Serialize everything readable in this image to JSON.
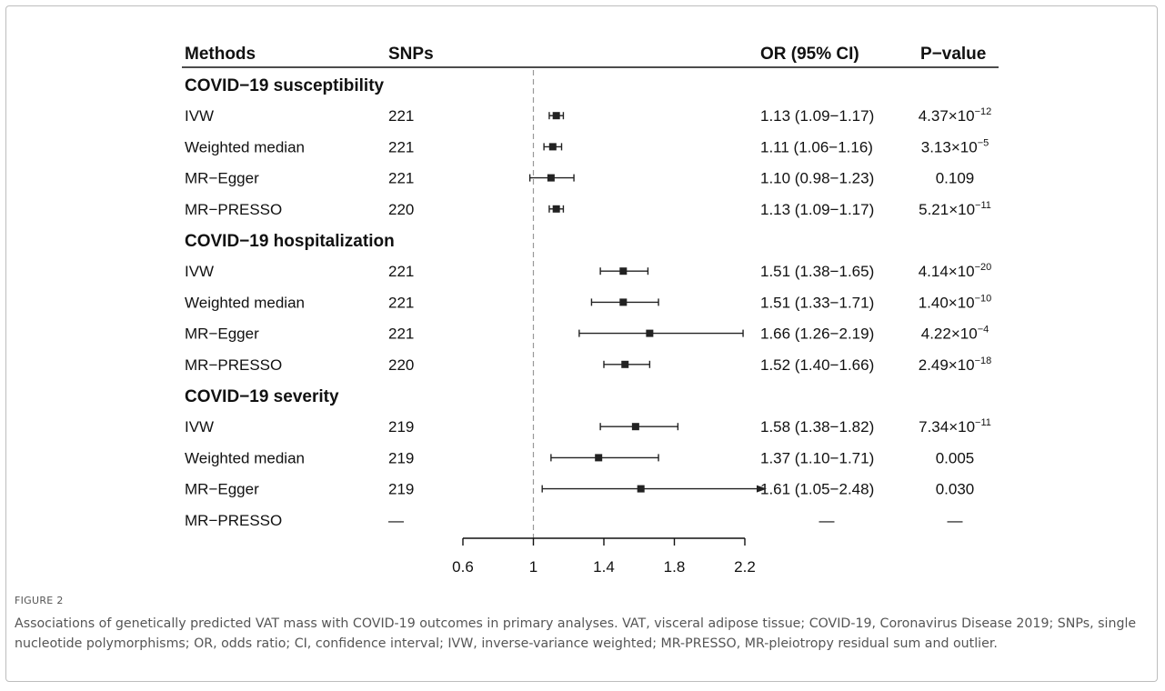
{
  "figure": {
    "label": "FIGURE 2",
    "caption": "Associations of genetically predicted VAT mass with COVID-19 outcomes in primary analyses. VAT, visceral adipose tissue; COVID-19, Coronavirus Disease 2019; SNPs, single nucleotide polymorphisms; OR, odds ratio; CI, confidence interval; IVW, inverse-variance weighted; MR-PRESSO, MR-pleiotropy residual sum and outlier."
  },
  "headers": {
    "methods": "Methods",
    "snps": "SNPs",
    "or": "OR (95% CI)",
    "pvalue": "P−value"
  },
  "chart_data": {
    "type": "forest",
    "null_value": 1,
    "xlim": [
      0.6,
      2.2
    ],
    "xticks": [
      "0.6",
      "1",
      "1.4",
      "1.8",
      "2.2"
    ],
    "groups": [
      {
        "title": "COVID−19 susceptibility",
        "rows": [
          {
            "method": "IVW",
            "snps": "221",
            "or": 1.13,
            "lo": 1.09,
            "hi": 1.17,
            "or_text": "1.13 (1.09−1.17)",
            "p_mant": "4.37×10",
            "p_exp": "−12"
          },
          {
            "method": "Weighted median",
            "snps": "221",
            "or": 1.11,
            "lo": 1.06,
            "hi": 1.16,
            "or_text": "1.11 (1.06−1.16)",
            "p_mant": "3.13×10",
            "p_exp": "−5"
          },
          {
            "method": "MR−Egger",
            "snps": "221",
            "or": 1.1,
            "lo": 0.98,
            "hi": 1.23,
            "or_text": "1.10 (0.98−1.23)",
            "p_mant": "0.109",
            "p_exp": ""
          },
          {
            "method": "MR−PRESSO",
            "snps": "220",
            "or": 1.13,
            "lo": 1.09,
            "hi": 1.17,
            "or_text": "1.13 (1.09−1.17)",
            "p_mant": "5.21×10",
            "p_exp": "−11"
          }
        ]
      },
      {
        "title": "COVID−19 hospitalization",
        "rows": [
          {
            "method": "IVW",
            "snps": "221",
            "or": 1.51,
            "lo": 1.38,
            "hi": 1.65,
            "or_text": "1.51 (1.38−1.65)",
            "p_mant": "4.14×10",
            "p_exp": "−20"
          },
          {
            "method": "Weighted median",
            "snps": "221",
            "or": 1.51,
            "lo": 1.33,
            "hi": 1.71,
            "or_text": "1.51 (1.33−1.71)",
            "p_mant": "1.40×10",
            "p_exp": "−10"
          },
          {
            "method": "MR−Egger",
            "snps": "221",
            "or": 1.66,
            "lo": 1.26,
            "hi": 2.19,
            "or_text": "1.66 (1.26−2.19)",
            "p_mant": "4.22×10",
            "p_exp": "−4"
          },
          {
            "method": "MR−PRESSO",
            "snps": "220",
            "or": 1.52,
            "lo": 1.4,
            "hi": 1.66,
            "or_text": "1.52 (1.40−1.66)",
            "p_mant": "2.49×10",
            "p_exp": "−18"
          }
        ]
      },
      {
        "title": "COVID−19 severity",
        "rows": [
          {
            "method": "IVW",
            "snps": "219",
            "or": 1.58,
            "lo": 1.38,
            "hi": 1.82,
            "or_text": "1.58 (1.38−1.82)",
            "p_mant": "7.34×10",
            "p_exp": "−11"
          },
          {
            "method": "Weighted median",
            "snps": "219",
            "or": 1.37,
            "lo": 1.1,
            "hi": 1.71,
            "or_text": "1.37 (1.10−1.71)",
            "p_mant": "0.005",
            "p_exp": ""
          },
          {
            "method": "MR−Egger",
            "snps": "219",
            "or": 1.61,
            "lo": 1.05,
            "hi": 2.48,
            "or_text": "1.61 (1.05−2.48)",
            "p_mant": "0.030",
            "p_exp": "",
            "arrow": true
          },
          {
            "method": "MR−PRESSO",
            "snps": "—",
            "or": null,
            "lo": null,
            "hi": null,
            "or_text": "—",
            "p_mant": "—",
            "p_exp": ""
          }
        ]
      }
    ]
  }
}
